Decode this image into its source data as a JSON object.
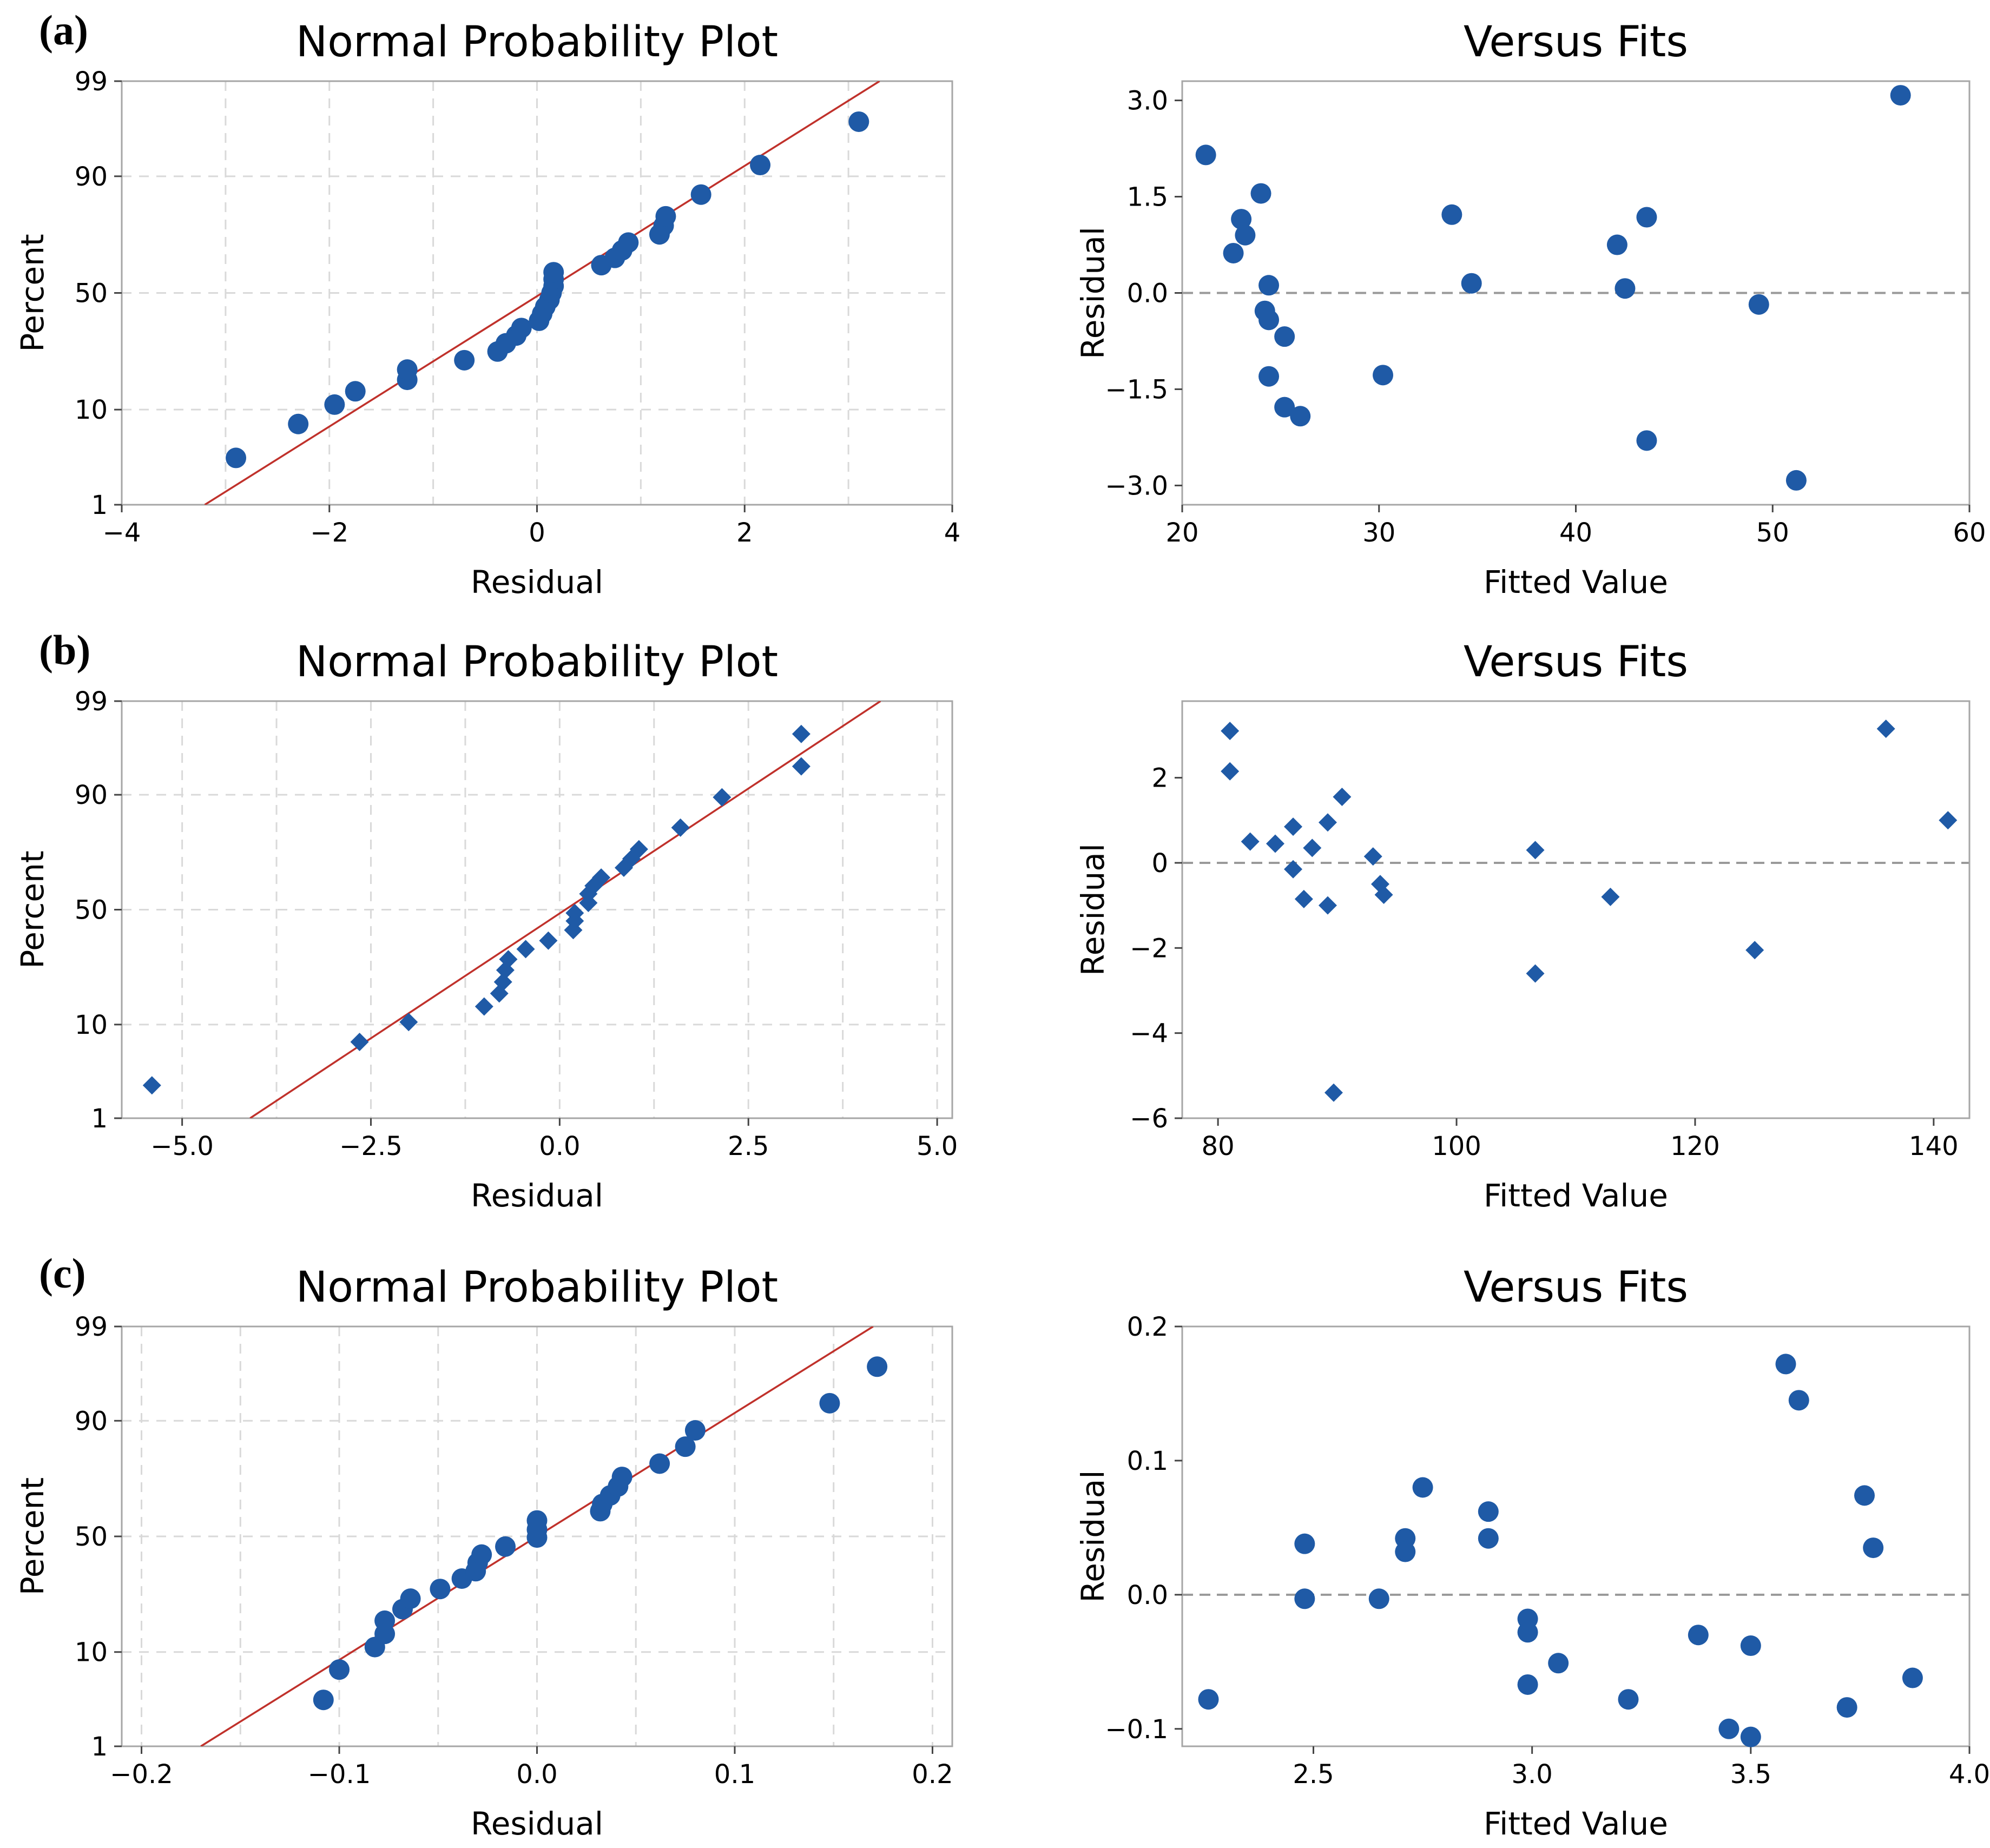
{
  "panel_labels": [
    "(a)",
    "(b)",
    "(c)"
  ],
  "chart_data": [
    {
      "id": "a-npp",
      "type": "scatter",
      "title": "Normal Probability Plot",
      "xlabel": "Residual",
      "ylabel": "Percent",
      "xlim": [
        -4,
        4
      ],
      "ylim_percent": [
        1,
        99
      ],
      "probability_scale": true,
      "xticks": [
        "−4",
        "−2",
        "0",
        "2",
        "4"
      ],
      "xtick_values": [
        -4,
        -2,
        0,
        2,
        4
      ],
      "yticks": [
        "1",
        "10",
        "50",
        "90",
        "99"
      ],
      "ytick_values": [
        1,
        10,
        50,
        90,
        99
      ],
      "grid": true,
      "marker": "circle",
      "fit_line": [
        [
          -3.2,
          1
        ],
        [
          3.3,
          99
        ]
      ],
      "points": [
        [
          -2.9,
          3.5
        ],
        [
          -2.3,
          7.5
        ],
        [
          -1.95,
          11
        ],
        [
          -1.75,
          14
        ],
        [
          -1.25,
          17
        ],
        [
          -1.25,
          20
        ],
        [
          -0.7,
          23
        ],
        [
          -0.38,
          26
        ],
        [
          -0.3,
          29
        ],
        [
          -0.2,
          32
        ],
        [
          -0.15,
          35
        ],
        [
          0.02,
          38
        ],
        [
          0.05,
          41
        ],
        [
          0.08,
          44
        ],
        [
          0.12,
          47
        ],
        [
          0.14,
          50
        ],
        [
          0.16,
          53
        ],
        [
          0.16,
          56
        ],
        [
          0.16,
          59
        ],
        [
          0.62,
          62
        ],
        [
          0.75,
          65
        ],
        [
          0.82,
          68
        ],
        [
          0.88,
          71
        ],
        [
          1.18,
          74
        ],
        [
          1.22,
          77
        ],
        [
          1.24,
          80
        ],
        [
          1.58,
          86
        ],
        [
          2.15,
          92
        ],
        [
          3.1,
          97
        ]
      ]
    },
    {
      "id": "a-fits",
      "type": "scatter",
      "title": "Versus Fits",
      "xlabel": "Fitted Value",
      "ylabel": "Residual",
      "xlim": [
        20,
        60
      ],
      "ylim": [
        -3.3,
        3.3
      ],
      "xticks": [
        "20",
        "30",
        "40",
        "50",
        "60"
      ],
      "xtick_values": [
        20,
        30,
        40,
        50,
        60
      ],
      "yticks": [
        "3.0",
        "1.5",
        "0.0",
        "−1.5",
        "−3.0"
      ],
      "ytick_values": [
        3.0,
        1.5,
        0.0,
        -1.5,
        -3.0
      ],
      "grid": false,
      "reference_line_y": 0,
      "marker": "circle",
      "points": [
        [
          21.2,
          2.15
        ],
        [
          22.6,
          0.62
        ],
        [
          23.0,
          1.15
        ],
        [
          23.2,
          0.9
        ],
        [
          24.0,
          1.55
        ],
        [
          24.4,
          0.12
        ],
        [
          24.2,
          -0.28
        ],
        [
          24.4,
          -0.42
        ],
        [
          25.2,
          -0.68
        ],
        [
          24.4,
          -1.3
        ],
        [
          25.2,
          -1.78
        ],
        [
          26.0,
          -1.92
        ],
        [
          30.2,
          -1.28
        ],
        [
          33.7,
          1.22
        ],
        [
          34.7,
          0.15
        ],
        [
          42.1,
          0.75
        ],
        [
          42.5,
          0.07
        ],
        [
          43.6,
          1.18
        ],
        [
          43.6,
          -2.3
        ],
        [
          49.3,
          -0.18
        ],
        [
          51.2,
          -2.92
        ],
        [
          56.5,
          3.08
        ]
      ]
    },
    {
      "id": "b-npp",
      "type": "scatter",
      "title": "Normal Probability Plot",
      "xlabel": "Residual",
      "ylabel": "Percent",
      "xlim": [
        -5.8,
        5.2
      ],
      "ylim_percent": [
        1,
        99
      ],
      "probability_scale": true,
      "xticks": [
        "−5.0",
        "−2.5",
        "0.0",
        "2.5",
        "5.0"
      ],
      "xtick_values": [
        -5,
        -2.5,
        0,
        2.5,
        5
      ],
      "yticks": [
        "1",
        "10",
        "50",
        "90",
        "99"
      ],
      "ytick_values": [
        1,
        10,
        50,
        90,
        99
      ],
      "grid": true,
      "marker": "diamond",
      "fit_line": [
        [
          -4.1,
          1
        ],
        [
          4.25,
          99
        ]
      ],
      "points": [
        [
          -5.4,
          2.5
        ],
        [
          -2.65,
          7
        ],
        [
          -2.0,
          10.5
        ],
        [
          -1.0,
          14
        ],
        [
          -0.8,
          17.5
        ],
        [
          -0.75,
          21
        ],
        [
          -0.72,
          25
        ],
        [
          -0.68,
          29
        ],
        [
          -0.45,
          33
        ],
        [
          -0.15,
          36.5
        ],
        [
          0.18,
          41
        ],
        [
          0.2,
          45
        ],
        [
          0.2,
          48.5
        ],
        [
          0.38,
          53
        ],
        [
          0.38,
          57
        ],
        [
          0.45,
          60.5
        ],
        [
          0.55,
          64
        ],
        [
          0.85,
          68
        ],
        [
          0.95,
          71.5
        ],
        [
          1.05,
          75
        ],
        [
          1.6,
          82
        ],
        [
          2.15,
          89.5
        ],
        [
          3.2,
          94.5
        ],
        [
          3.2,
          97.5
        ]
      ]
    },
    {
      "id": "b-fits",
      "type": "scatter",
      "title": "Versus Fits",
      "xlabel": "Fitted Value",
      "ylabel": "Residual",
      "xlim": [
        77,
        143
      ],
      "ylim": [
        -6,
        3.8
      ],
      "xticks": [
        "80",
        "100",
        "120",
        "140"
      ],
      "xtick_values": [
        80,
        100,
        120,
        140
      ],
      "yticks": [
        "2",
        "0",
        "−2",
        "−4",
        "−6"
      ],
      "ytick_values": [
        2,
        0,
        -2,
        -4,
        -6
      ],
      "grid": false,
      "reference_line_y": 0,
      "marker": "diamond",
      "points": [
        [
          81.0,
          3.1
        ],
        [
          81.0,
          2.15
        ],
        [
          82.7,
          0.5
        ],
        [
          84.8,
          0.45
        ],
        [
          86.3,
          0.85
        ],
        [
          86.3,
          -0.15
        ],
        [
          87.2,
          -0.85
        ],
        [
          87.9,
          0.35
        ],
        [
          89.2,
          0.95
        ],
        [
          89.2,
          -1.0
        ],
        [
          89.7,
          -5.4
        ],
        [
          90.4,
          1.55
        ],
        [
          93.0,
          0.15
        ],
        [
          93.6,
          -0.5
        ],
        [
          93.9,
          -0.75
        ],
        [
          106.6,
          0.3
        ],
        [
          106.6,
          -2.6
        ],
        [
          112.9,
          -0.8
        ],
        [
          125.0,
          -2.05
        ],
        [
          136.0,
          3.15
        ],
        [
          141.2,
          1.0
        ]
      ]
    },
    {
      "id": "c-npp",
      "type": "scatter",
      "title": "Normal Probability Plot",
      "xlabel": "Residual",
      "ylabel": "Percent",
      "xlim": [
        -0.21,
        0.21
      ],
      "ylim_percent": [
        1,
        99
      ],
      "probability_scale": true,
      "xticks": [
        "−0.2",
        "−0.1",
        "0.0",
        "0.1",
        "0.2"
      ],
      "xtick_values": [
        -0.2,
        -0.1,
        0,
        0.1,
        0.2
      ],
      "yticks": [
        "1",
        "10",
        "50",
        "90",
        "99"
      ],
      "ytick_values": [
        1,
        10,
        50,
        90,
        99
      ],
      "grid": true,
      "marker": "circle",
      "fit_line": [
        [
          -0.17,
          1
        ],
        [
          0.17,
          99
        ]
      ],
      "points": [
        [
          -0.108,
          3.5
        ],
        [
          -0.1,
          7
        ],
        [
          -0.082,
          11
        ],
        [
          -0.077,
          14
        ],
        [
          -0.077,
          17.5
        ],
        [
          -0.068,
          21
        ],
        [
          -0.064,
          24.5
        ],
        [
          -0.049,
          28
        ],
        [
          -0.038,
          32
        ],
        [
          -0.031,
          35
        ],
        [
          -0.03,
          38.5
        ],
        [
          -0.028,
          42
        ],
        [
          -0.016,
          45.5
        ],
        [
          0.0,
          49.5
        ],
        [
          0.0,
          53
        ],
        [
          0.0,
          57
        ],
        [
          0.032,
          61
        ],
        [
          0.033,
          64
        ],
        [
          0.037,
          67.5
        ],
        [
          0.041,
          71
        ],
        [
          0.043,
          74.5
        ],
        [
          0.062,
          79
        ],
        [
          0.075,
          84
        ],
        [
          0.08,
          88
        ],
        [
          0.148,
          93
        ],
        [
          0.172,
          97
        ]
      ]
    },
    {
      "id": "c-fits",
      "type": "scatter",
      "title": "Versus Fits",
      "xlabel": "Fitted Value",
      "ylabel": "Residual",
      "xlim": [
        2.2,
        4.0
      ],
      "ylim": [
        -0.113,
        0.2
      ],
      "xticks": [
        "2.5",
        "3.0",
        "3.5",
        "4.0"
      ],
      "xtick_values": [
        2.5,
        3.0,
        3.5,
        4.0
      ],
      "yticks": [
        "0.2",
        "0.1",
        "0.0",
        "−0.1"
      ],
      "ytick_values": [
        0.2,
        0.1,
        0.0,
        -0.1
      ],
      "grid": false,
      "reference_line_y": 0,
      "marker": "circle",
      "points": [
        [
          2.26,
          -0.078
        ],
        [
          2.48,
          0.038
        ],
        [
          2.48,
          -0.003
        ],
        [
          2.65,
          -0.003
        ],
        [
          2.71,
          0.042
        ],
        [
          2.71,
          0.032
        ],
        [
          2.75,
          0.08
        ],
        [
          2.9,
          0.062
        ],
        [
          2.9,
          0.042
        ],
        [
          2.99,
          -0.018
        ],
        [
          2.99,
          -0.028
        ],
        [
          2.99,
          -0.067
        ],
        [
          3.06,
          -0.051
        ],
        [
          3.22,
          -0.078
        ],
        [
          3.38,
          -0.03
        ],
        [
          3.45,
          -0.1
        ],
        [
          3.5,
          -0.106
        ],
        [
          3.5,
          -0.038
        ],
        [
          3.58,
          0.172
        ],
        [
          3.61,
          0.145
        ],
        [
          3.72,
          -0.084
        ],
        [
          3.76,
          0.074
        ],
        [
          3.78,
          0.035
        ],
        [
          3.87,
          -0.062
        ]
      ]
    }
  ]
}
